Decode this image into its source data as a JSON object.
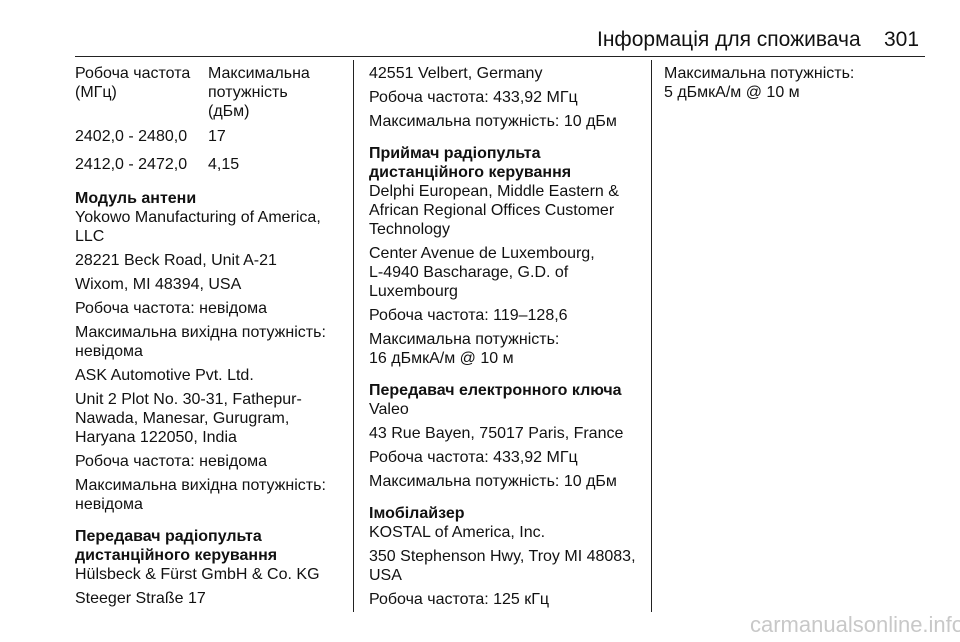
{
  "header": {
    "title": "Інформація для споживача",
    "page": "301"
  },
  "table": {
    "header": [
      [
        "Робоча частота",
        "(МГц)"
      ],
      [
        "Максимальна",
        "потужність",
        "(дБм)"
      ]
    ],
    "rows": [
      [
        "2402,0 - 2480,0",
        "17"
      ],
      [
        "2412,0 - 2472,0",
        "4,15"
      ]
    ]
  },
  "columns": [
    {
      "blocks": [
        {
          "heading": [
            "Модуль антени"
          ],
          "paragraphs": [
            [
              "Yokowo Manufacturing of America,",
              "LLC"
            ],
            [
              "28221 Beck Road, Unit A-21"
            ],
            [
              "Wixom, MI 48394, USA"
            ],
            [
              "Робоча частота: невідома"
            ],
            [
              "Максимальна вихідна потужність:",
              "невідома"
            ],
            [
              "ASK Automotive Pvt. Ltd."
            ],
            [
              "Unit 2 Plot No. 30-31, Fathepur-",
              "Nawada, Manesar, Gurugram,",
              "Haryana 122050, India"
            ],
            [
              "Робоча частота: невідома"
            ],
            [
              "Максимальна вихідна потужність:",
              "невідома"
            ]
          ]
        },
        {
          "heading": [
            "Передавач радіопульта",
            "дистанційного керування"
          ],
          "paragraphs": [
            [
              "Hülsbeck & Fürst GmbH & Co. KG"
            ],
            [
              "Steeger Straße 17"
            ]
          ]
        }
      ]
    },
    {
      "blocks": [
        {
          "paragraphs": [
            [
              "42551 Velbert, Germany"
            ],
            [
              "Робоча частота: 433,92 МГц"
            ],
            [
              "Максимальна потужність: 10 дБм"
            ]
          ]
        },
        {
          "heading": [
            "Приймач радіопульта",
            "дистанційного керування"
          ],
          "paragraphs": [
            [
              "Delphi European, Middle Eastern &",
              "African Regional Offices Customer",
              "Technology"
            ],
            [
              "Center Avenue de Luxembourg,",
              "L-4940 Bascharage, G.D. of",
              "Luxembourg"
            ],
            [
              "Робоча частота: 119–128,6"
            ],
            [
              "Максимальна потужність:",
              "16 дБмкА/м @ 10 м"
            ]
          ]
        },
        {
          "heading": [
            "Передавач електронного ключа"
          ],
          "paragraphs": [
            [
              "Valeo"
            ],
            [
              "43 Rue Bayen, 75017 Paris, France"
            ],
            [
              "Робоча частота: 433,92 МГц"
            ],
            [
              "Максимальна потужність: 10 дБм"
            ]
          ]
        },
        {
          "heading": [
            "Імобілайзер"
          ],
          "paragraphs": [
            [
              "KOSTAL of America, Inc."
            ],
            [
              "350 Stephenson Hwy, Troy MI 48083,",
              "USA"
            ],
            [
              "Робоча частота: 125 кГц"
            ]
          ]
        }
      ]
    },
    {
      "blocks": [
        {
          "paragraphs": [
            [
              "Максимальна потужність:",
              "5 дБмкА/м @ 10 м"
            ]
          ]
        }
      ]
    }
  ],
  "footer": {
    "watermark": "carmanualsonline.info"
  }
}
